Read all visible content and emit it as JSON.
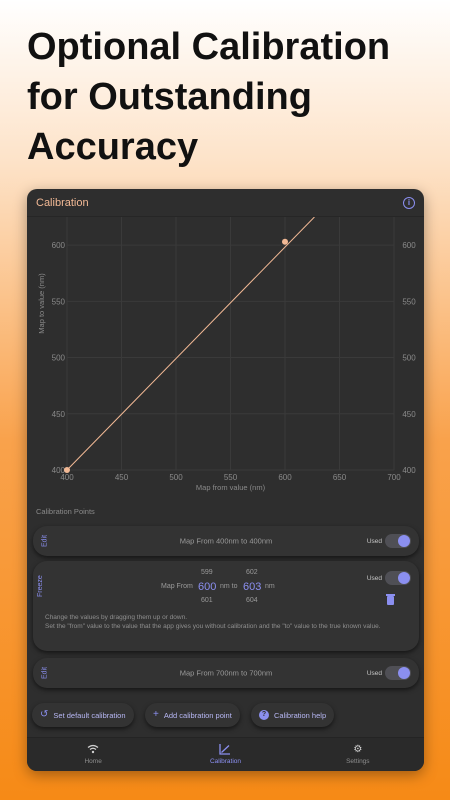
{
  "headline": [
    "Optional Calibration",
    "for Outstanding",
    "Accuracy"
  ],
  "app": {
    "title": "Calibration",
    "info_icon": "info-icon"
  },
  "chart_data": {
    "type": "line",
    "xlabel": "Map from value (nm)",
    "ylabel": "Map to value (nm)",
    "xlim": [
      400,
      700
    ],
    "ylim": [
      400,
      625
    ],
    "x_ticks": [
      400,
      450,
      500,
      550,
      600,
      650,
      700
    ],
    "y_ticks": [
      400,
      450,
      500,
      550,
      600
    ],
    "grid": true,
    "line_points": [
      [
        400,
        400
      ],
      [
        627,
        625
      ]
    ],
    "points": [
      [
        400,
        400
      ],
      [
        600,
        603
      ]
    ],
    "line_color": "#f2b995",
    "point_color": "#f2b995"
  },
  "section_label": "Calibration Points",
  "cards": [
    {
      "tab": "Edit",
      "text": "Map From 400nm to 400nm",
      "toggle_label": "Used"
    },
    {
      "tab": "Freeze",
      "from_prev": "599",
      "from_value": "600",
      "from_next": "601",
      "to_prev": "602",
      "to_value": "603",
      "to_next": "604",
      "map_from": "Map From",
      "nm_to": "nm to",
      "nm": "nm",
      "toggle_label": "Used",
      "help_line1": "Change the values by dragging them up or down.",
      "help_line2": "Set the \"from\" value to the value that the app gives you without calibration and the \"to\" value to the true known value."
    },
    {
      "tab": "Edit",
      "text": "Map From 700nm to 700nm",
      "toggle_label": "Used"
    }
  ],
  "buttons": {
    "default": "Set default calibration",
    "add": "Add calibration point",
    "help": "Calibration help"
  },
  "nav": {
    "home": "Home",
    "calibration": "Calibration",
    "settings": "Settings"
  },
  "colors": {
    "accent": "#8b8ff0",
    "title": "#f2b995",
    "surface": "#2e2e2e"
  }
}
